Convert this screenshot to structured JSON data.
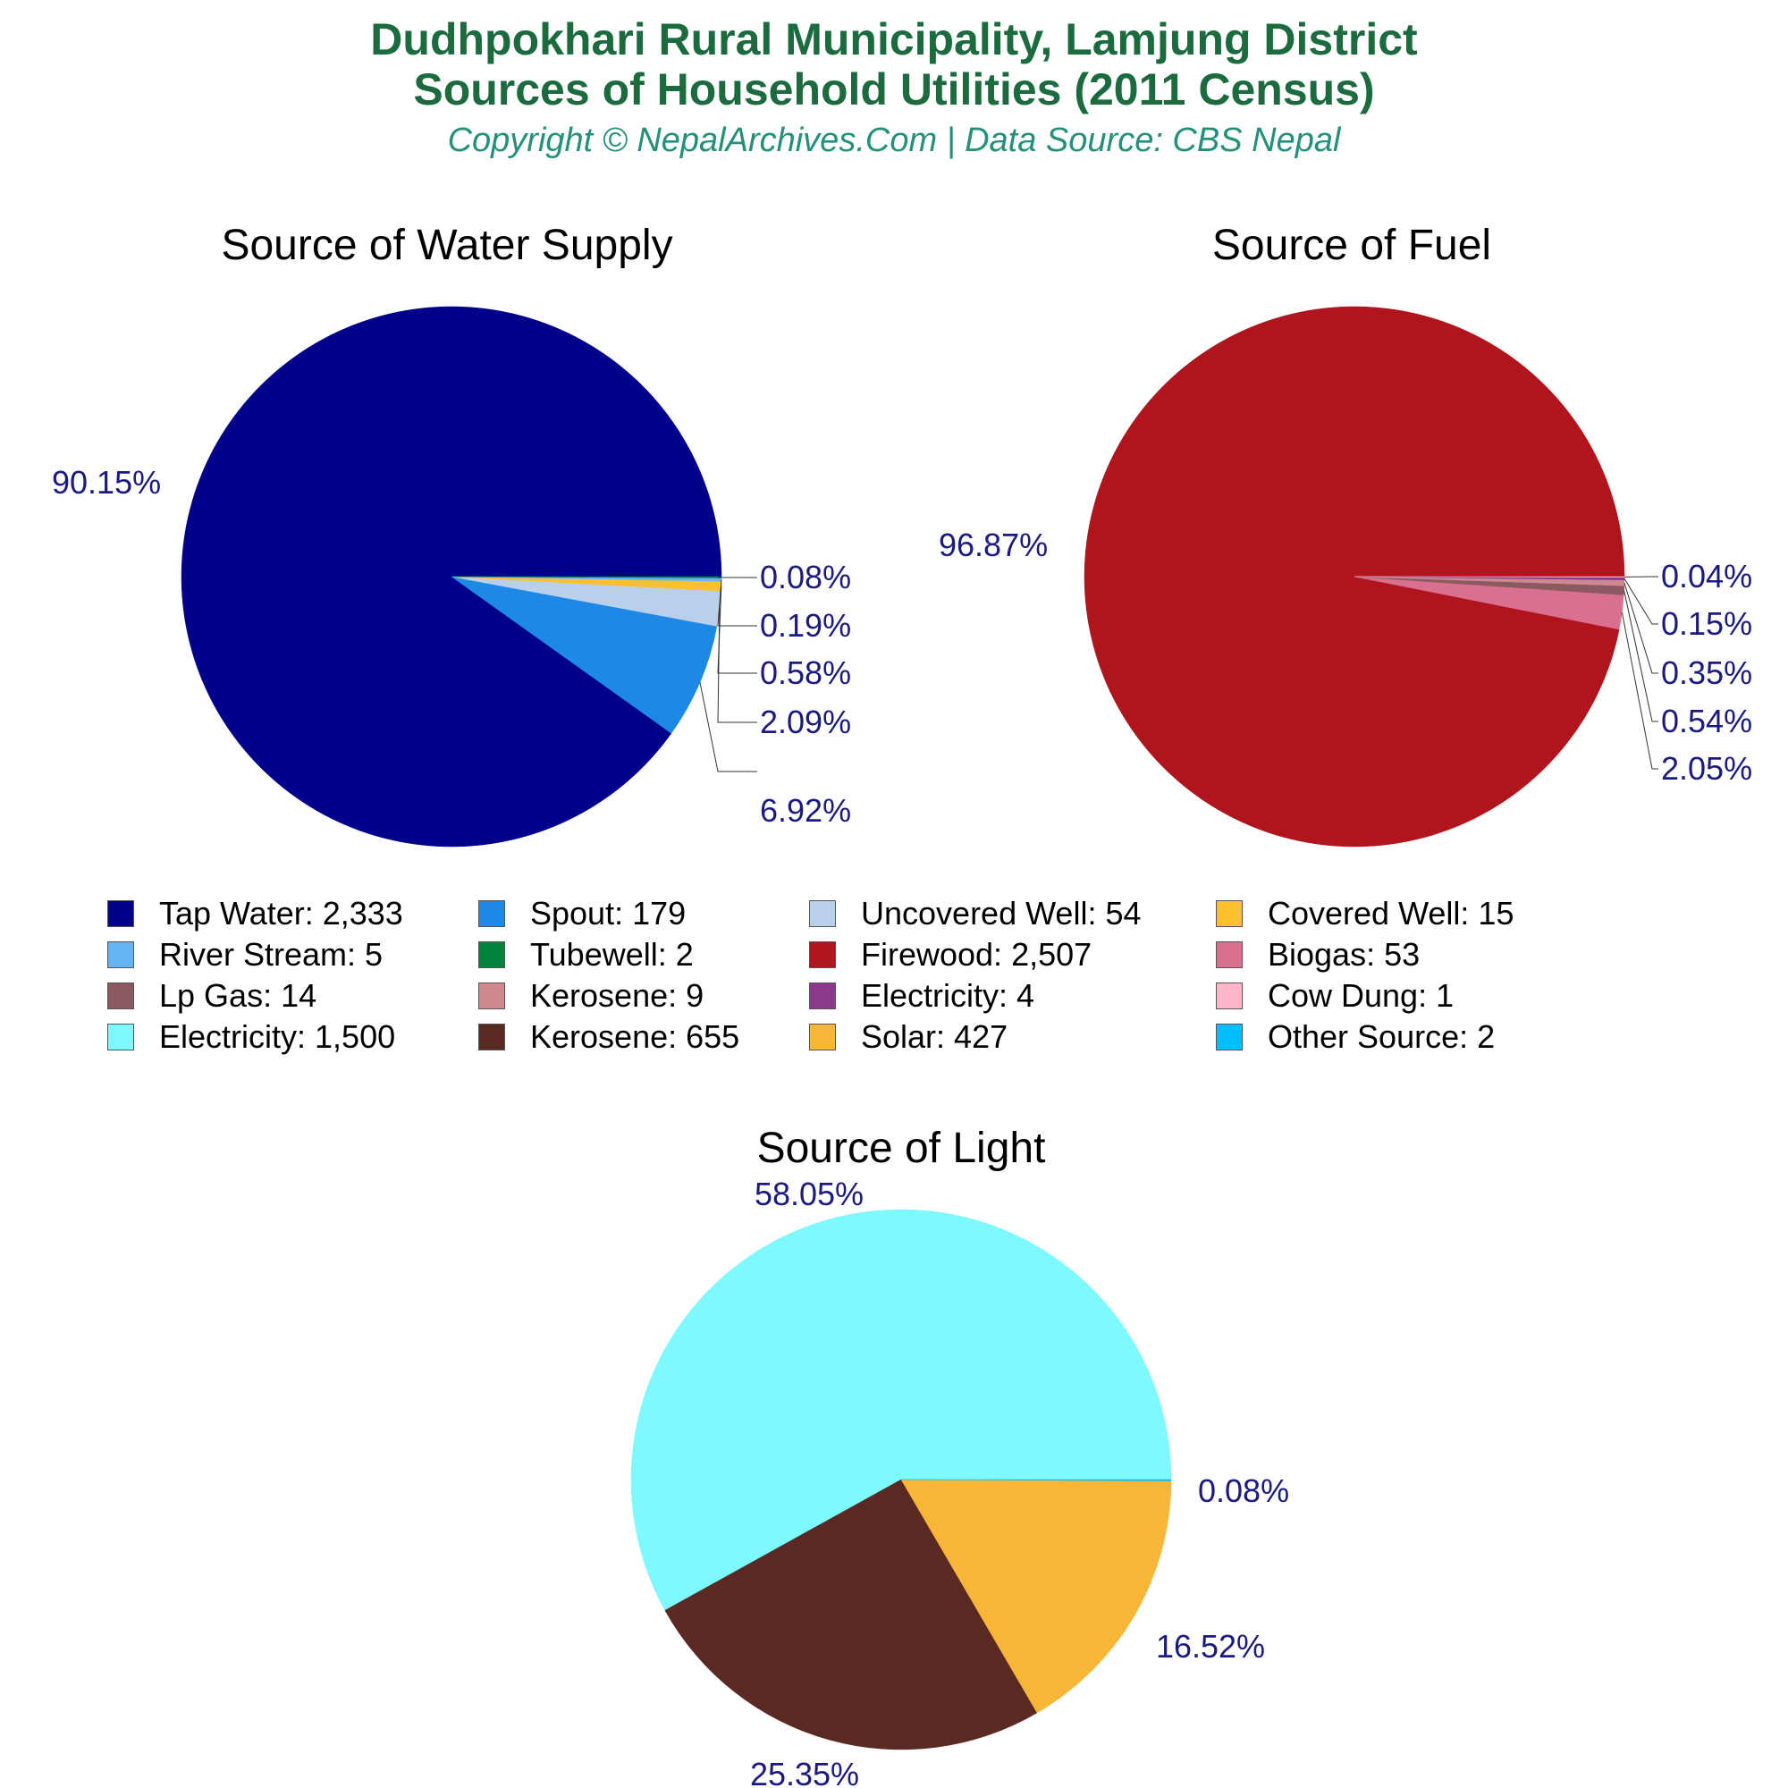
{
  "header": {
    "title_line1": "Dudhpokhari Rural Municipality, Lamjung District",
    "title_line2": "Sources of Household Utilities (2011 Census)",
    "subtitle": "Copyright © NepalArchives.Com | Data Source: CBS Nepal"
  },
  "chart_data": [
    {
      "type": "pie",
      "title": "Source of Water Supply",
      "slices": [
        {
          "label": "Tap Water",
          "value": 2333,
          "percent": "90.15%",
          "color": "#00008b"
        },
        {
          "label": "Spout",
          "value": 179,
          "percent": "6.92%",
          "color": "#1e88e5"
        },
        {
          "label": "Uncovered Well",
          "value": 54,
          "percent": "2.09%",
          "color": "#b8d0ea"
        },
        {
          "label": "Covered Well",
          "value": 15,
          "percent": "0.58%",
          "color": "#fbc02d"
        },
        {
          "label": "River Stream",
          "value": 5,
          "percent": "0.19%",
          "color": "#64b5f6"
        },
        {
          "label": "Tubewell",
          "value": 2,
          "percent": "0.08%",
          "color": "#00843d"
        }
      ]
    },
    {
      "type": "pie",
      "title": "Source of Fuel",
      "slices": [
        {
          "label": "Firewood",
          "value": 2507,
          "percent": "96.87%",
          "color": "#b0151e"
        },
        {
          "label": "Biogas",
          "value": 53,
          "percent": "2.05%",
          "color": "#d9708f"
        },
        {
          "label": "Lp Gas",
          "value": 14,
          "percent": "0.54%",
          "color": "#8b5a60"
        },
        {
          "label": "Kerosene",
          "value": 9,
          "percent": "0.35%",
          "color": "#cd8890"
        },
        {
          "label": "Electricity",
          "value": 4,
          "percent": "0.15%",
          "color": "#8b3a8b"
        },
        {
          "label": "Cow Dung",
          "value": 1,
          "percent": "0.04%",
          "color": "#ffb6c8"
        }
      ]
    },
    {
      "type": "pie",
      "title": "Source of Light",
      "slices": [
        {
          "label": "Electricity",
          "value": 1500,
          "percent": "58.05%",
          "color": "#7ef9ff"
        },
        {
          "label": "Kerosene",
          "value": 655,
          "percent": "25.35%",
          "color": "#5a2a22"
        },
        {
          "label": "Solar",
          "value": 427,
          "percent": "16.52%",
          "color": "#f7b638"
        },
        {
          "label": "Other Source",
          "value": 2,
          "percent": "0.08%",
          "color": "#00bfff"
        }
      ]
    }
  ],
  "legend": [
    {
      "label": "Tap Water: 2,333",
      "color": "#00008b"
    },
    {
      "label": "Spout: 179",
      "color": "#1e88e5"
    },
    {
      "label": "Uncovered Well: 54",
      "color": "#b8d0ea"
    },
    {
      "label": "Covered Well: 15",
      "color": "#fbc02d"
    },
    {
      "label": "River Stream: 5",
      "color": "#64b5f6"
    },
    {
      "label": "Tubewell: 2",
      "color": "#00843d"
    },
    {
      "label": "Firewood: 2,507",
      "color": "#b0151e"
    },
    {
      "label": "Biogas: 53",
      "color": "#d9708f"
    },
    {
      "label": "Lp Gas: 14",
      "color": "#8b5a60"
    },
    {
      "label": "Kerosene: 9",
      "color": "#cd8890"
    },
    {
      "label": "Electricity: 4",
      "color": "#8b3a8b"
    },
    {
      "label": "Cow Dung: 1",
      "color": "#ffb6c8"
    },
    {
      "label": "Electricity: 1,500",
      "color": "#7ef9ff"
    },
    {
      "label": "Kerosene: 655",
      "color": "#5a2a22"
    },
    {
      "label": "Solar: 427",
      "color": "#f7b638"
    },
    {
      "label": "Other Source: 2",
      "color": "#00bfff"
    }
  ]
}
